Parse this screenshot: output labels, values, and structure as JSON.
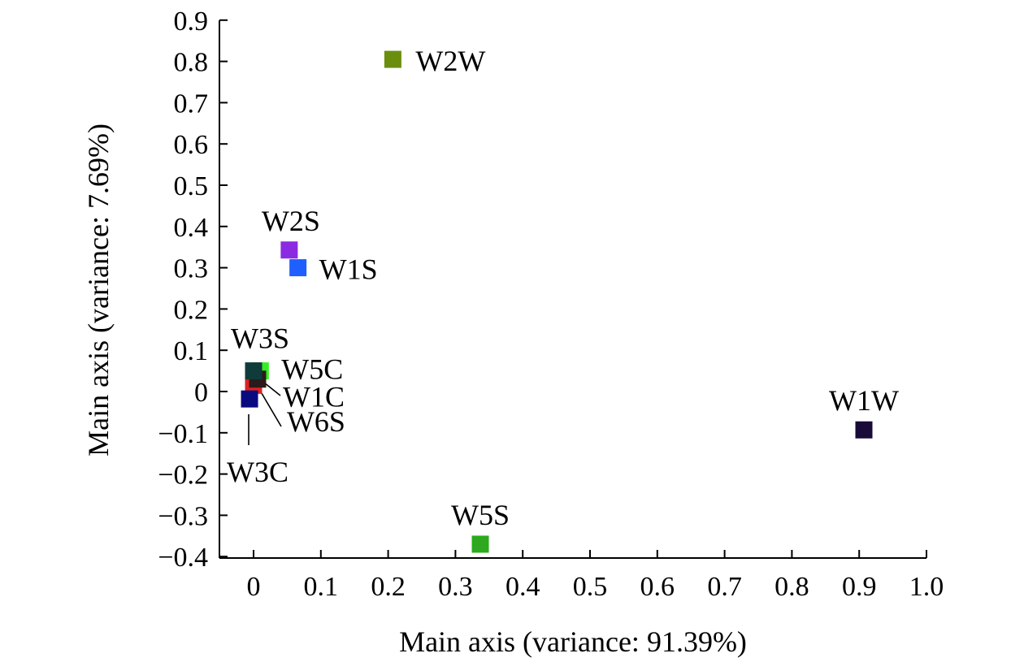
{
  "chart_data": {
    "type": "scatter",
    "xlabel": "Main axis (variance: 91.39%)",
    "ylabel": "Main axis (variance: 7.69%)",
    "xlim": [
      -0.05,
      1.0
    ],
    "ylim": [
      -0.4,
      0.9
    ],
    "x_ticks": [
      "0",
      "0.1",
      "0.2",
      "0.3",
      "0.4",
      "0.5",
      "0.6",
      "0.7",
      "0.8",
      "0.9",
      "1.0"
    ],
    "x_tick_values": [
      0,
      0.1,
      0.2,
      0.3,
      0.4,
      0.5,
      0.6,
      0.7,
      0.8,
      0.9,
      1.0
    ],
    "y_ticks": [
      "−0.4",
      "−0.3",
      "−0.2",
      "−0.1",
      "0",
      "0.1",
      "0.2",
      "0.3",
      "0.4",
      "0.5",
      "0.6",
      "0.7",
      "0.8",
      "0.9"
    ],
    "y_tick_values": [
      -0.4,
      -0.3,
      -0.2,
      -0.1,
      0,
      0.1,
      0.2,
      0.3,
      0.4,
      0.5,
      0.6,
      0.7,
      0.8,
      0.9
    ],
    "grid": false,
    "points": [
      {
        "label": "W2W",
        "x": 0.207,
        "y": 0.805,
        "color": "#6b8e0f"
      },
      {
        "label": "W2S",
        "x": 0.053,
        "y": 0.343,
        "color": "#8a2be2"
      },
      {
        "label": "W1S",
        "x": 0.066,
        "y": 0.3,
        "color": "#1f5fff"
      },
      {
        "label": "W5C",
        "x": 0.01,
        "y": 0.05,
        "color": "#33ee22"
      },
      {
        "label": "W1C",
        "x": 0.0,
        "y": 0.015,
        "color": "#e02020"
      },
      {
        "label": "W6S",
        "x": 0.006,
        "y": 0.03,
        "color": "#2b1a1a"
      },
      {
        "label": "W3S",
        "x": 0.0,
        "y": 0.05,
        "color": "#0f3b3b"
      },
      {
        "label": "W3C",
        "x": -0.006,
        "y": -0.018,
        "color": "#0a0a80"
      },
      {
        "label": "W1W",
        "x": 0.907,
        "y": -0.093,
        "color": "#1a0a3a"
      },
      {
        "label": "W5S",
        "x": 0.337,
        "y": -0.37,
        "color": "#2ea81e"
      }
    ]
  }
}
